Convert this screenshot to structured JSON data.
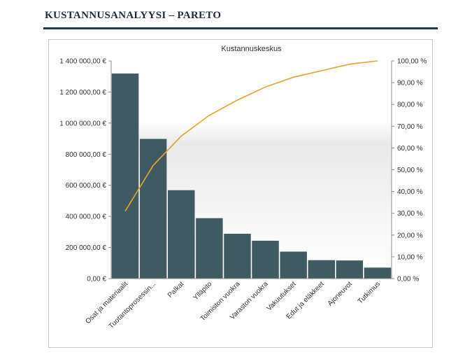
{
  "header": {
    "title": "KUSTANNUSANALYYSI – PARETO"
  },
  "colors": {
    "bar": "#3f5a61",
    "line": "#e8a22c",
    "title_rule": "#1f3a4d"
  },
  "chart_data": {
    "type": "bar",
    "title": "Kustannuskeskus",
    "xlabel": "",
    "ylabel": "",
    "categories": [
      "Osat ja materiaalit",
      "Tuotantoprosessin...",
      "Palkat",
      "Ylläpito",
      "Toimiston vuokra",
      "Varaston vuokra",
      "Vakuutukset",
      "Edut ja eläkkeet",
      "Ajoneuvot",
      "Tutkimus"
    ],
    "series": [
      {
        "type": "bar",
        "axis": "left",
        "values": [
          1320000,
          900000,
          570000,
          390000,
          290000,
          245000,
          175000,
          120000,
          118000,
          72000
        ]
      },
      {
        "type": "line",
        "axis": "right",
        "values": [
          31.0,
          52.0,
          65.5,
          75.0,
          82.0,
          88.0,
          92.5,
          95.5,
          98.5,
          100.0
        ]
      }
    ],
    "ylim": [
      0,
      1400000
    ],
    "y_ticks": [
      "0,00 €",
      "200 000,00 €",
      "400 000,00 €",
      "600 000,00 €",
      "800 000,00 €",
      "1 000 000,00 €",
      "1 200 000,00 €",
      "1 400 000,00 €"
    ],
    "y2lim": [
      0,
      100
    ],
    "y2_ticks": [
      "0,00 %",
      "10,00 %",
      "20,00 %",
      "30,00 %",
      "40,00 %",
      "50,00 %",
      "60,00 %",
      "70,00 %",
      "80,00 %",
      "90,00 %",
      "100,00 %"
    ],
    "grid": false,
    "legend": "none"
  }
}
